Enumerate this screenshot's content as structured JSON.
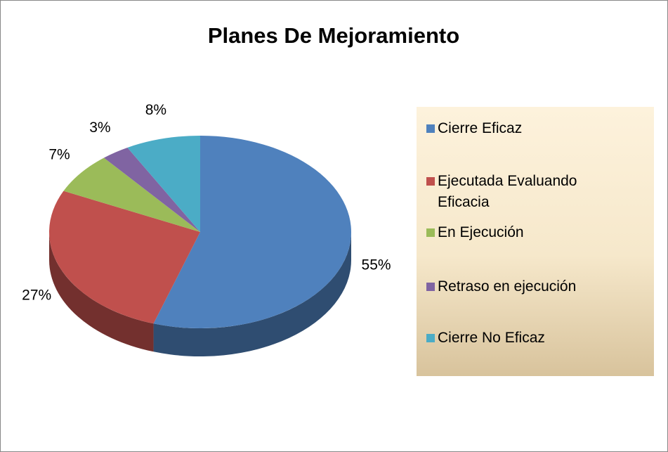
{
  "chart_data": {
    "type": "pie",
    "title": "Planes De Mejoramiento",
    "categories": [
      "Cierre Eficaz",
      "Ejecutada Evaluando Eficacia",
      "En Ejecución",
      "Retraso en ejecución",
      "Cierre No Eficaz"
    ],
    "values": [
      55,
      27,
      7,
      3,
      8
    ],
    "value_labels": [
      "55%",
      "27%",
      "7%",
      "3%",
      "8%"
    ],
    "colors": [
      "#4f81bd",
      "#c0504d",
      "#9bbb59",
      "#8064a2",
      "#4bacc6"
    ],
    "legend": "right"
  }
}
